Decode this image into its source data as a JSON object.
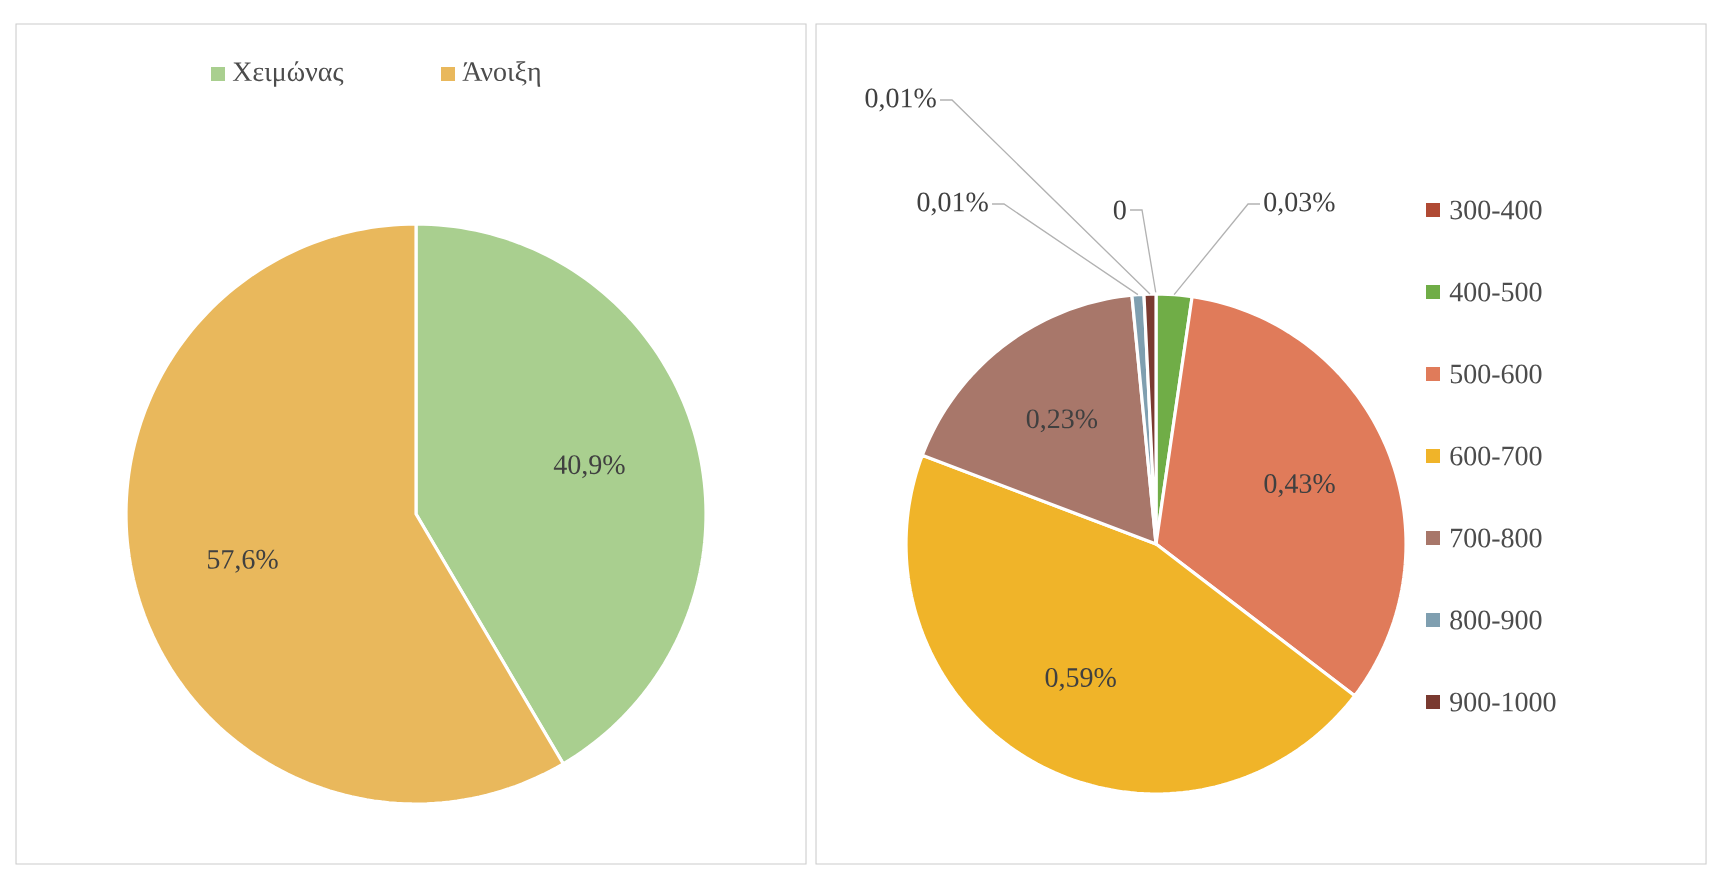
{
  "chart_data": [
    {
      "type": "pie",
      "categories": [
        "Χειμώνας",
        "Άνοιξη"
      ],
      "values": [
        40.9,
        57.6
      ],
      "value_labels": [
        "40,9%",
        "57,6%"
      ],
      "colors": [
        "#a9cf8f",
        "#e9b85c"
      ],
      "legend": "top"
    },
    {
      "type": "pie",
      "categories": [
        "300-400",
        "400-500",
        "500-600",
        "600-700",
        "700-800",
        "800-900",
        "900-1000"
      ],
      "values": [
        0,
        0.03,
        0.43,
        0.59,
        0.23,
        0.01,
        0.01
      ],
      "value_labels": [
        "0",
        "0,03%",
        "0,43%",
        "0,59%",
        "0,23%",
        "0,01%",
        "0,01%"
      ],
      "colors": [
        "#b04a34",
        "#70ad47",
        "#e07b5a",
        "#f0b429",
        "#a8776a",
        "#7f9fb0",
        "#7a3a30"
      ],
      "legend": "right"
    }
  ]
}
